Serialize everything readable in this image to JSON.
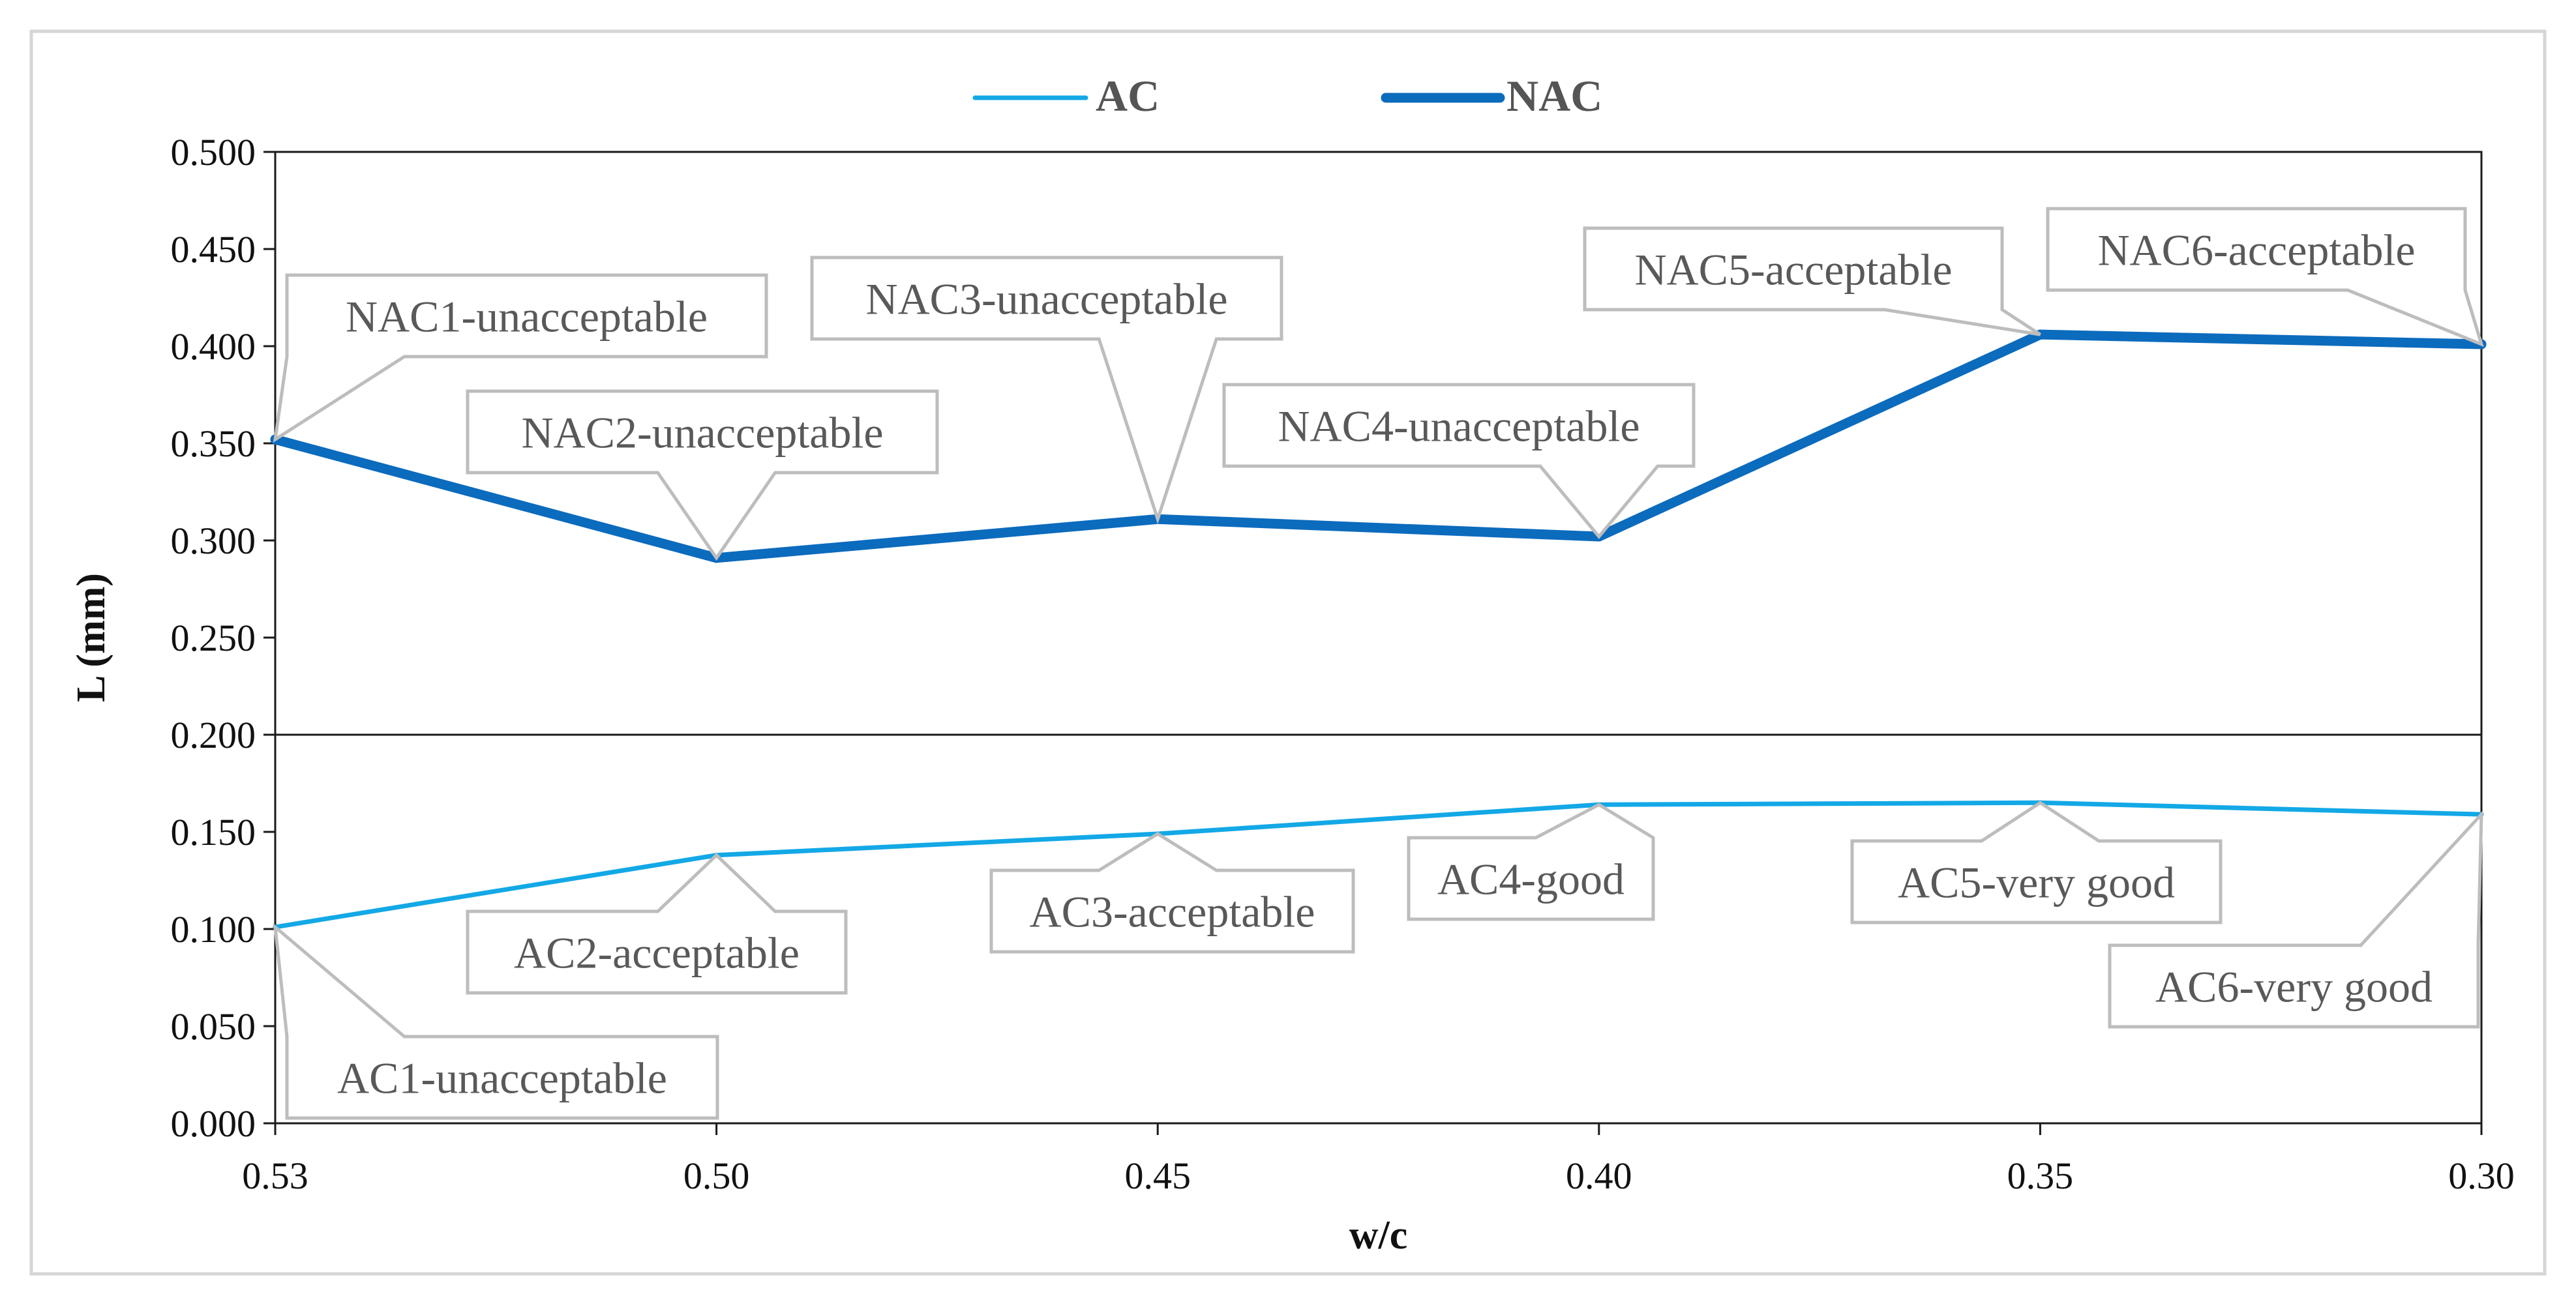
{
  "chart_data": {
    "type": "line",
    "title": "",
    "xlabel": "w/c",
    "ylabel": "L (mm)",
    "categories": [
      "0.53",
      "0.50",
      "0.45",
      "0.40",
      "0.35",
      "0.30"
    ],
    "ylim": [
      0,
      0.5
    ],
    "yticks": [
      "0.000",
      "0.050",
      "0.100",
      "0.150",
      "0.200",
      "0.250",
      "0.300",
      "0.350",
      "0.400",
      "0.450",
      "0.500"
    ],
    "reference_line": 0.2,
    "legend_position": "top-center",
    "series": [
      {
        "name": "AC",
        "color": "#13a8e6",
        "values": [
          0.101,
          0.138,
          0.149,
          0.164,
          0.165,
          0.159
        ],
        "labels": [
          "AC1-unacceptable",
          "AC2-acceptable",
          "AC3-acceptable",
          "AC4-good",
          "AC5-very good",
          "AC6-very good"
        ]
      },
      {
        "name": "NAC",
        "color": "#0b6bbd",
        "values": [
          0.352,
          0.291,
          0.311,
          0.302,
          0.406,
          0.401
        ],
        "labels": [
          "NAC1-unacceptable",
          "NAC2-unacceptable",
          "NAC3-unacceptable",
          "NAC4-unacceptable",
          "NAC5-acceptable",
          "NAC6-acceptable"
        ]
      }
    ]
  }
}
